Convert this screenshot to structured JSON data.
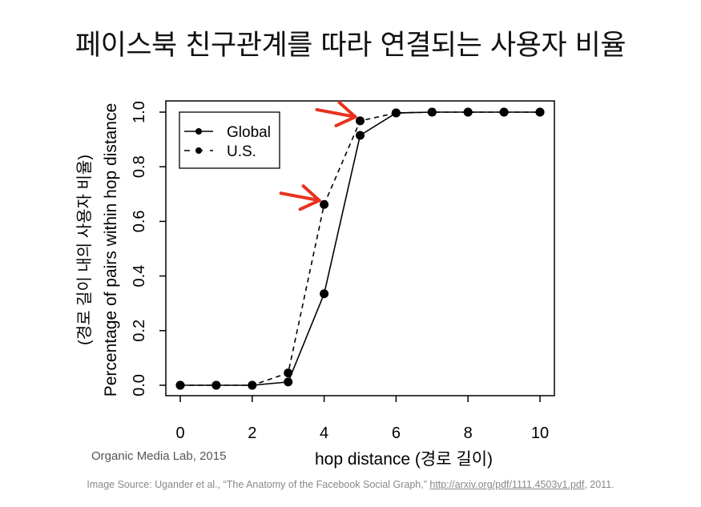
{
  "title": "페이스북 친구관계를 따라  연결되는 사용자 비율",
  "credit": "Organic Media Lab, 2015",
  "source": {
    "prefix": "Image Source: Ugander et al., “The Anatomy of the Facebook Social Graph,” ",
    "link": "http://arxiv.org/pdf/1111.4503v1.pdf",
    "suffix": ", 2011."
  },
  "annotation_color": "#e8321e",
  "chart_data": {
    "type": "line",
    "title": "",
    "xlabel": "hop distance (경로 길이)",
    "ylabel": "Percentage of pairs within hop distance",
    "ylabel2": "(경로 길이 내의 사용자 비율)",
    "xlim": [
      0,
      10
    ],
    "ylim": [
      0,
      1
    ],
    "xticks": [
      "0",
      "2",
      "4",
      "6",
      "8",
      "10"
    ],
    "yticks": [
      "0.0",
      "0.2",
      "0.4",
      "0.6",
      "0.8",
      "1.0"
    ],
    "grid": false,
    "legend": "top-left",
    "x": [
      0,
      1,
      2,
      3,
      4,
      5,
      6,
      7,
      8,
      9,
      10
    ],
    "series": [
      {
        "name": "Global",
        "style": "solid",
        "values": [
          0,
          0,
          0,
          0.012,
          0.335,
          0.915,
          0.997,
          1,
          1,
          1,
          1
        ]
      },
      {
        "name": "U.S.",
        "style": "dashed",
        "values": [
          0,
          0,
          0,
          0.045,
          0.662,
          0.968,
          0.997,
          1,
          1,
          1,
          1
        ]
      }
    ],
    "annotations": [
      {
        "type": "red-arrow",
        "target_series": "U.S.",
        "x": 4
      },
      {
        "type": "red-arrow",
        "target_series": "U.S.",
        "x": 5
      }
    ]
  }
}
